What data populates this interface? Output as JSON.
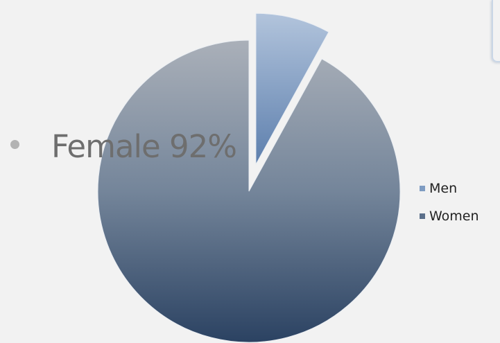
{
  "bullet_text": "Female 92%",
  "chart_data": {
    "type": "pie",
    "labels": [
      "Men",
      "Women"
    ],
    "values": [
      8,
      92
    ],
    "colors": [
      "#7f9cc2",
      "#5b6f8a"
    ],
    "exploded": "Men",
    "legend": "right"
  }
}
